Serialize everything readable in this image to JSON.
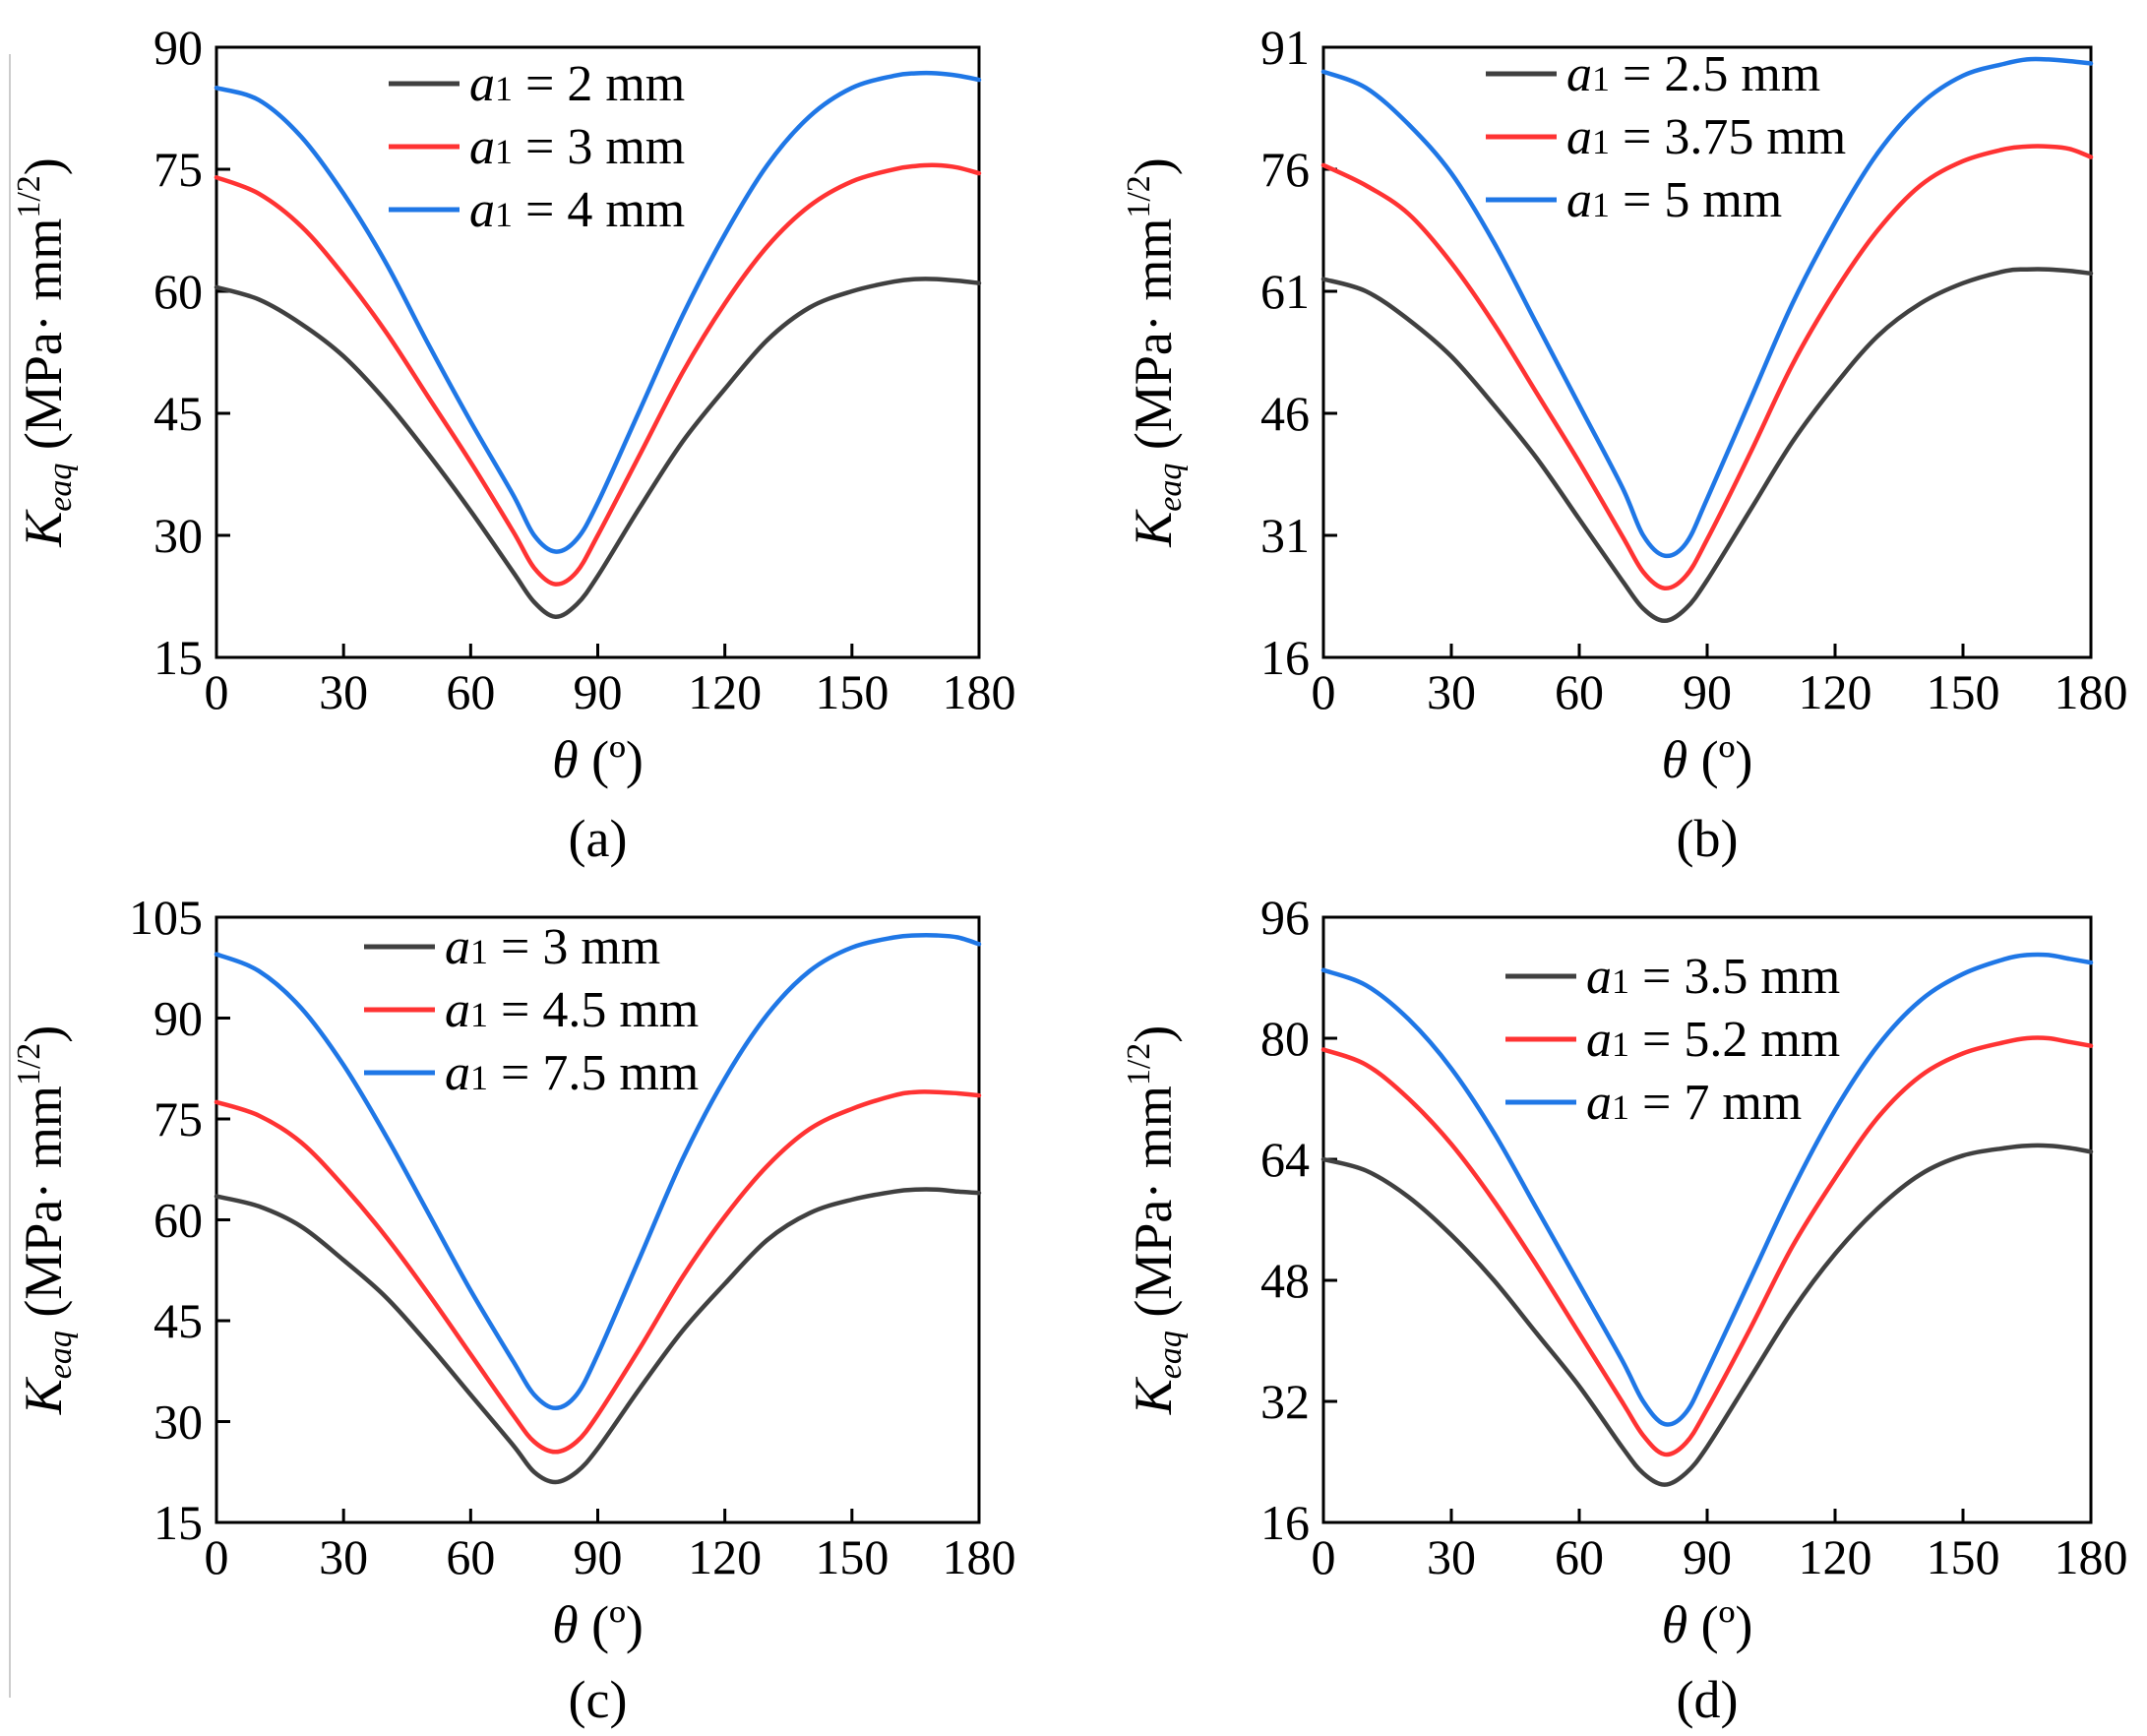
{
  "chart_data": [
    {
      "type": "line",
      "caption": "(a)",
      "xlabel": {
        "symbol": "θ",
        "unit": " (º)"
      },
      "ylabel": {
        "symbol": "K",
        "sub": "eaq",
        "unit": " (MPa· mm",
        "sup": "1/2",
        "close": ")"
      },
      "xlim": [
        0,
        180
      ],
      "ylim": [
        15,
        90
      ],
      "xticks": [
        "0",
        "30",
        "60",
        "90",
        "120",
        "150",
        "180"
      ],
      "yticks": [
        "15",
        "30",
        "45",
        "60",
        "75",
        "90"
      ],
      "legend_position": "top-center",
      "x": [
        0,
        10,
        20,
        30,
        40,
        50,
        60,
        70,
        75,
        80,
        85,
        90,
        100,
        110,
        120,
        130,
        140,
        150,
        160,
        165,
        170,
        175,
        180
      ],
      "series": [
        {
          "label": "2 mm",
          "color": "#404040",
          "values": [
            60.5,
            59,
            56,
            52,
            46.5,
            40,
            33,
            25.5,
            21.8,
            20,
            21.5,
            25,
            33.5,
            41.5,
            48,
            54,
            58,
            60,
            61.2,
            61.5,
            61.5,
            61.3,
            61
          ]
        },
        {
          "label": "3 mm",
          "color": "#ff3333",
          "values": [
            74,
            72,
            68,
            62,
            55,
            47,
            39,
            30.5,
            26,
            24,
            25.5,
            30,
            40,
            50,
            58.5,
            65.5,
            70.5,
            73.5,
            75,
            75.4,
            75.5,
            75.2,
            74.5
          ]
        },
        {
          "label": "4 mm",
          "color": "#1f77e6",
          "values": [
            85,
            83.5,
            79,
            72,
            63.5,
            53.5,
            44,
            35,
            30,
            28,
            29.5,
            34,
            45.5,
            57,
            67,
            75.5,
            81.5,
            85,
            86.5,
            86.8,
            86.8,
            86.5,
            86
          ]
        }
      ]
    },
    {
      "type": "line",
      "caption": "(b)",
      "xlabel": {
        "symbol": "θ",
        "unit": " (º)"
      },
      "ylabel": {
        "symbol": "K",
        "sub": "eaq",
        "unit": " (MPa· mm",
        "sup": "1/2",
        "close": ")"
      },
      "xlim": [
        0,
        180
      ],
      "ylim": [
        16,
        91
      ],
      "xticks": [
        "0",
        "30",
        "60",
        "90",
        "120",
        "150",
        "180"
      ],
      "yticks": [
        "16",
        "31",
        "46",
        "61",
        "76",
        "91"
      ],
      "legend_position": "top-center",
      "x": [
        0,
        10,
        20,
        30,
        40,
        50,
        60,
        70,
        75,
        80,
        85,
        90,
        100,
        110,
        120,
        130,
        140,
        150,
        160,
        165,
        170,
        175,
        180
      ],
      "series": [
        {
          "label": "2.5 mm",
          "color": "#404040",
          "values": [
            62.5,
            61,
            57.5,
            53,
            47,
            40.5,
            33,
            25.5,
            22,
            20.5,
            22,
            25.5,
            34,
            42.5,
            49.5,
            55.5,
            59.5,
            62,
            63.5,
            63.7,
            63.7,
            63.5,
            63.2
          ]
        },
        {
          "label": "3.75 mm",
          "color": "#ff3333",
          "values": [
            76.5,
            74,
            70.5,
            64.5,
            57,
            48.5,
            40,
            31,
            26.5,
            24.5,
            26,
            30.5,
            41,
            52,
            61,
            68.5,
            74,
            77,
            78.5,
            78.8,
            78.8,
            78.5,
            77.5
          ]
        },
        {
          "label": "5 mm",
          "color": "#1f77e6",
          "values": [
            88,
            86,
            81.5,
            75.5,
            67,
            57,
            47,
            37,
            31,
            28.5,
            30,
            35.5,
            47.5,
            59.5,
            69.5,
            78,
            84,
            87.5,
            89,
            89.5,
            89.5,
            89.3,
            89
          ]
        }
      ]
    },
    {
      "type": "line",
      "caption": "(c)",
      "xlabel": {
        "symbol": "θ",
        "unit": " (º)"
      },
      "ylabel": {
        "symbol": "K",
        "sub": "eaq",
        "unit": " (MPa· mm",
        "sup": "1/2",
        "close": ")"
      },
      "xlim": [
        0,
        180
      ],
      "ylim": [
        15,
        105
      ],
      "xticks": [
        "0",
        "30",
        "60",
        "90",
        "120",
        "150",
        "180"
      ],
      "yticks": [
        "15",
        "30",
        "45",
        "60",
        "75",
        "90",
        "105"
      ],
      "legend_position": "top-center",
      "x": [
        0,
        10,
        20,
        30,
        40,
        50,
        60,
        70,
        75,
        80,
        85,
        90,
        100,
        110,
        120,
        130,
        140,
        150,
        160,
        165,
        170,
        175,
        180
      ],
      "series": [
        {
          "label": "3 mm",
          "color": "#404040",
          "values": [
            63.5,
            62,
            59,
            54,
            48.5,
            41.5,
            34,
            26.5,
            22.5,
            21,
            22.5,
            26,
            35,
            43.5,
            50.5,
            57,
            61,
            63,
            64.2,
            64.5,
            64.5,
            64.2,
            64
          ]
        },
        {
          "label": "4.5 mm",
          "color": "#ff3333",
          "values": [
            77.5,
            75.5,
            71.5,
            65,
            57.5,
            49,
            40,
            31,
            27,
            25.5,
            27,
            31,
            41,
            51.5,
            60.5,
            68,
            73.5,
            76.5,
            78.5,
            79,
            79,
            78.8,
            78.5
          ]
        },
        {
          "label": "7.5 mm",
          "color": "#1f77e6",
          "values": [
            99.5,
            97,
            91.5,
            83,
            72.5,
            61,
            49.5,
            39,
            34,
            32,
            34,
            40,
            54.5,
            69,
            81,
            90.5,
            97,
            100.5,
            102,
            102.3,
            102.3,
            102,
            101
          ]
        }
      ]
    },
    {
      "type": "line",
      "caption": "(d)",
      "xlabel": {
        "symbol": "θ",
        "unit": " (º)"
      },
      "ylabel": {
        "symbol": "K",
        "sub": "eaq",
        "unit": " (MPa· mm",
        "sup": "1/2",
        "close": ")"
      },
      "xlim": [
        0,
        180
      ],
      "ylim": [
        16,
        96
      ],
      "xticks": [
        "0",
        "30",
        "60",
        "90",
        "120",
        "150",
        "180"
      ],
      "yticks": [
        "16",
        "32",
        "48",
        "64",
        "80",
        "96"
      ],
      "legend_position": "top-center",
      "x": [
        0,
        10,
        20,
        30,
        40,
        50,
        60,
        70,
        75,
        80,
        85,
        90,
        100,
        110,
        120,
        130,
        140,
        150,
        160,
        165,
        170,
        175,
        180
      ],
      "series": [
        {
          "label": "3.5 mm",
          "color": "#404040",
          "values": [
            64,
            62.5,
            59,
            54,
            48,
            41,
            34,
            26,
            22.5,
            21,
            22.5,
            26,
            35,
            44,
            51.5,
            57.5,
            62,
            64.5,
            65.5,
            65.8,
            65.8,
            65.5,
            65
          ]
        },
        {
          "label": "5.2 mm",
          "color": "#ff3333",
          "values": [
            78.5,
            76.5,
            72,
            66,
            58.5,
            50,
            41,
            32,
            27.5,
            25,
            26.5,
            31,
            41.5,
            52.5,
            61.5,
            69.5,
            75,
            78,
            79.5,
            80,
            80,
            79.5,
            79
          ]
        },
        {
          "label": "7 mm",
          "color": "#1f77e6",
          "values": [
            89,
            87,
            82.5,
            76,
            67.5,
            57.5,
            47.5,
            37.5,
            32,
            29,
            30.5,
            36,
            48,
            60,
            70.5,
            79,
            85,
            88.5,
            90.5,
            91,
            91,
            90.5,
            90
          ]
        }
      ]
    }
  ]
}
